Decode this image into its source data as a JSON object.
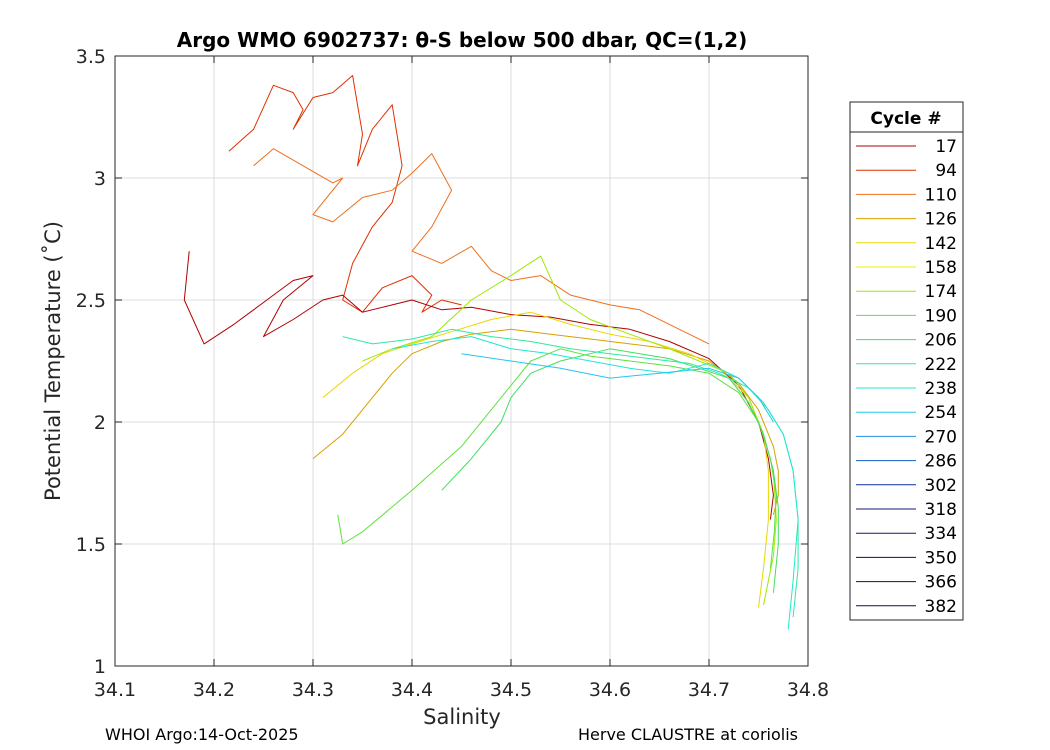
{
  "chart_data": {
    "type": "line",
    "title": "Argo WMO 6902737: θ-S below 500 dbar,  QC=(1,2)",
    "xlabel": "Salinity",
    "ylabel": "Potential Temperature (˚C)",
    "xlim": [
      34.1,
      34.8
    ],
    "ylim": [
      1,
      3.5
    ],
    "xticks": [
      "34.1",
      "34.2",
      "34.3",
      "34.4",
      "34.5",
      "34.6",
      "34.7",
      "34.8"
    ],
    "yticks": [
      "1",
      "1.5",
      "2",
      "2.5",
      "3",
      "3.5"
    ],
    "grid": true,
    "legend": {
      "title": "Cycle #",
      "position": "right",
      "entries": [
        {
          "label": "17",
          "color": "#b00000"
        },
        {
          "label": "94",
          "color": "#e03000"
        },
        {
          "label": "110",
          "color": "#f07020"
        },
        {
          "label": "126",
          "color": "#d8a000"
        },
        {
          "label": "142",
          "color": "#e8d800"
        },
        {
          "label": "158",
          "color": "#f0f000"
        },
        {
          "label": "174",
          "color": "#a0e800"
        },
        {
          "label": "190",
          "color": "#60e040"
        },
        {
          "label": "206",
          "color": "#40e060"
        },
        {
          "label": "222",
          "color": "#30e8a0"
        },
        {
          "label": "238",
          "color": "#20e8d0"
        },
        {
          "label": "254",
          "color": "#20c8f0"
        },
        {
          "label": "270",
          "color": "#2090e0"
        },
        {
          "label": "286",
          "color": "#1060c0"
        },
        {
          "label": "302",
          "color": "#0830a0"
        },
        {
          "label": "318",
          "color": "#101880"
        },
        {
          "label": "334",
          "color": "#201070"
        },
        {
          "label": "350",
          "color": "#100860"
        },
        {
          "label": "366",
          "color": "#300820"
        },
        {
          "label": "382",
          "color": "#180850"
        }
      ]
    },
    "series": [
      {
        "name": "94",
        "color": "#e03000",
        "x": [
          34.215,
          34.24,
          34.26,
          34.28,
          34.29,
          34.28,
          34.3,
          34.32,
          34.34,
          34.345,
          34.35,
          34.345,
          34.36,
          34.38,
          34.39,
          34.38,
          34.36,
          34.34,
          34.33,
          34.35,
          34.37,
          34.4,
          34.42,
          34.41,
          34.43,
          34.45
        ],
        "y": [
          3.11,
          3.2,
          3.38,
          3.35,
          3.28,
          3.2,
          3.33,
          3.35,
          3.42,
          3.3,
          3.18,
          3.05,
          3.2,
          3.3,
          3.05,
          2.9,
          2.8,
          2.65,
          2.5,
          2.45,
          2.55,
          2.6,
          2.52,
          2.45,
          2.5,
          2.48
        ]
      },
      {
        "name": "110",
        "color": "#f07020",
        "x": [
          34.24,
          34.26,
          34.29,
          34.32,
          34.33,
          34.3,
          34.32,
          34.35,
          34.38,
          34.4,
          34.42,
          34.44,
          34.42,
          34.4,
          34.43,
          34.46,
          34.48,
          34.5,
          34.53,
          34.56,
          34.6,
          34.63,
          34.66,
          34.7
        ],
        "y": [
          3.05,
          3.12,
          3.05,
          2.98,
          3.0,
          2.85,
          2.82,
          2.92,
          2.95,
          3.02,
          3.1,
          2.95,
          2.8,
          2.7,
          2.65,
          2.72,
          2.62,
          2.58,
          2.6,
          2.52,
          2.48,
          2.46,
          2.4,
          2.32
        ]
      },
      {
        "name": "17",
        "color": "#b00000",
        "x": [
          34.175,
          34.17,
          34.19,
          34.22,
          34.24,
          34.26,
          34.28,
          34.3,
          34.27,
          34.25,
          34.28,
          34.31,
          34.33,
          34.35,
          34.38,
          34.4,
          34.43,
          34.46,
          34.5,
          34.54,
          34.58,
          34.62,
          34.66,
          34.7,
          34.73,
          34.75,
          34.76,
          34.765,
          34.762
        ],
        "y": [
          2.7,
          2.5,
          2.32,
          2.4,
          2.46,
          2.52,
          2.58,
          2.6,
          2.5,
          2.35,
          2.42,
          2.5,
          2.52,
          2.45,
          2.48,
          2.5,
          2.46,
          2.47,
          2.44,
          2.43,
          2.4,
          2.38,
          2.33,
          2.26,
          2.15,
          2.0,
          1.85,
          1.7,
          1.6
        ]
      },
      {
        "name": "126",
        "color": "#d8a000",
        "x": [
          34.3,
          34.33,
          34.36,
          34.38,
          34.4,
          34.43,
          34.46,
          34.5,
          34.54,
          34.58,
          34.62,
          34.66,
          34.7,
          34.73,
          34.75,
          34.765,
          34.77,
          34.77,
          34.765
        ],
        "y": [
          1.85,
          1.95,
          2.1,
          2.2,
          2.28,
          2.33,
          2.36,
          2.38,
          2.36,
          2.34,
          2.32,
          2.3,
          2.25,
          2.16,
          2.05,
          1.9,
          1.8,
          1.7,
          1.62
        ]
      },
      {
        "name": "142",
        "color": "#e8d800",
        "x": [
          34.31,
          34.34,
          34.37,
          34.4,
          34.44,
          34.48,
          34.52,
          34.56,
          34.6,
          34.64,
          34.68,
          34.71,
          34.74,
          34.755,
          34.76,
          34.76,
          34.755,
          34.75
        ],
        "y": [
          2.1,
          2.2,
          2.28,
          2.32,
          2.37,
          2.42,
          2.45,
          2.4,
          2.36,
          2.33,
          2.28,
          2.22,
          2.1,
          1.95,
          1.8,
          1.6,
          1.4,
          1.24
        ]
      },
      {
        "name": "174",
        "color": "#a0e800",
        "x": [
          34.35,
          34.38,
          34.42,
          34.46,
          34.5,
          34.53,
          34.55,
          34.58,
          34.62,
          34.66,
          34.69,
          34.72,
          34.74,
          34.755,
          34.765,
          34.768,
          34.765,
          34.76,
          34.755
        ],
        "y": [
          2.25,
          2.3,
          2.35,
          2.5,
          2.6,
          2.68,
          2.5,
          2.42,
          2.36,
          2.3,
          2.25,
          2.2,
          2.1,
          1.95,
          1.8,
          1.6,
          1.45,
          1.35,
          1.25
        ]
      },
      {
        "name": "190",
        "color": "#60e040",
        "x": [
          34.325,
          34.33,
          34.35,
          34.4,
          34.45,
          34.48,
          34.5,
          34.52,
          34.55,
          34.58,
          34.62,
          34.66,
          34.7,
          34.73,
          34.75,
          34.762,
          34.768,
          34.766,
          34.762
        ],
        "y": [
          1.62,
          1.5,
          1.55,
          1.72,
          1.9,
          2.05,
          2.15,
          2.25,
          2.3,
          2.27,
          2.25,
          2.23,
          2.2,
          2.12,
          2.0,
          1.85,
          1.7,
          1.55,
          1.4
        ]
      },
      {
        "name": "206",
        "color": "#40e060",
        "x": [
          34.43,
          34.46,
          34.49,
          34.5,
          34.52,
          34.55,
          34.58,
          34.6,
          34.63,
          34.66,
          34.69,
          34.72,
          34.74,
          34.755,
          34.765,
          34.77,
          34.77,
          34.765
        ],
        "y": [
          1.72,
          1.85,
          2.0,
          2.1,
          2.2,
          2.25,
          2.28,
          2.3,
          2.28,
          2.26,
          2.22,
          2.18,
          2.08,
          1.95,
          1.8,
          1.65,
          1.5,
          1.3
        ]
      },
      {
        "name": "222",
        "color": "#30e8a0",
        "x": [
          34.33,
          34.36,
          34.4,
          34.44,
          34.48,
          34.52,
          34.56,
          34.6,
          34.64,
          34.68,
          34.71,
          34.74,
          34.76,
          34.775,
          34.785,
          34.79,
          34.79,
          34.785
        ],
        "y": [
          2.35,
          2.32,
          2.34,
          2.38,
          2.35,
          2.33,
          2.3,
          2.28,
          2.26,
          2.24,
          2.2,
          2.14,
          2.05,
          1.95,
          1.8,
          1.6,
          1.4,
          1.2
        ]
      },
      {
        "name": "238",
        "color": "#20e8d0",
        "x": [
          34.38,
          34.42,
          34.46,
          34.5,
          34.54,
          34.58,
          34.62,
          34.66,
          34.7,
          34.73,
          34.755,
          34.775,
          34.785,
          34.79,
          34.785,
          34.78
        ],
        "y": [
          2.3,
          2.33,
          2.35,
          2.3,
          2.28,
          2.25,
          2.22,
          2.2,
          2.24,
          2.18,
          2.08,
          1.95,
          1.8,
          1.6,
          1.35,
          1.15
        ]
      },
      {
        "name": "254",
        "color": "#20c8f0",
        "x": [
          34.45,
          34.5,
          34.55,
          34.6,
          34.65,
          34.7,
          34.73,
          34.75,
          34.765
        ],
        "y": [
          2.28,
          2.25,
          2.22,
          2.18,
          2.2,
          2.22,
          2.18,
          2.1,
          2.0
        ]
      }
    ]
  },
  "footer": {
    "left": "WHOI Argo:14-Oct-2025",
    "right": "Herve CLAUSTRE at coriolis"
  }
}
